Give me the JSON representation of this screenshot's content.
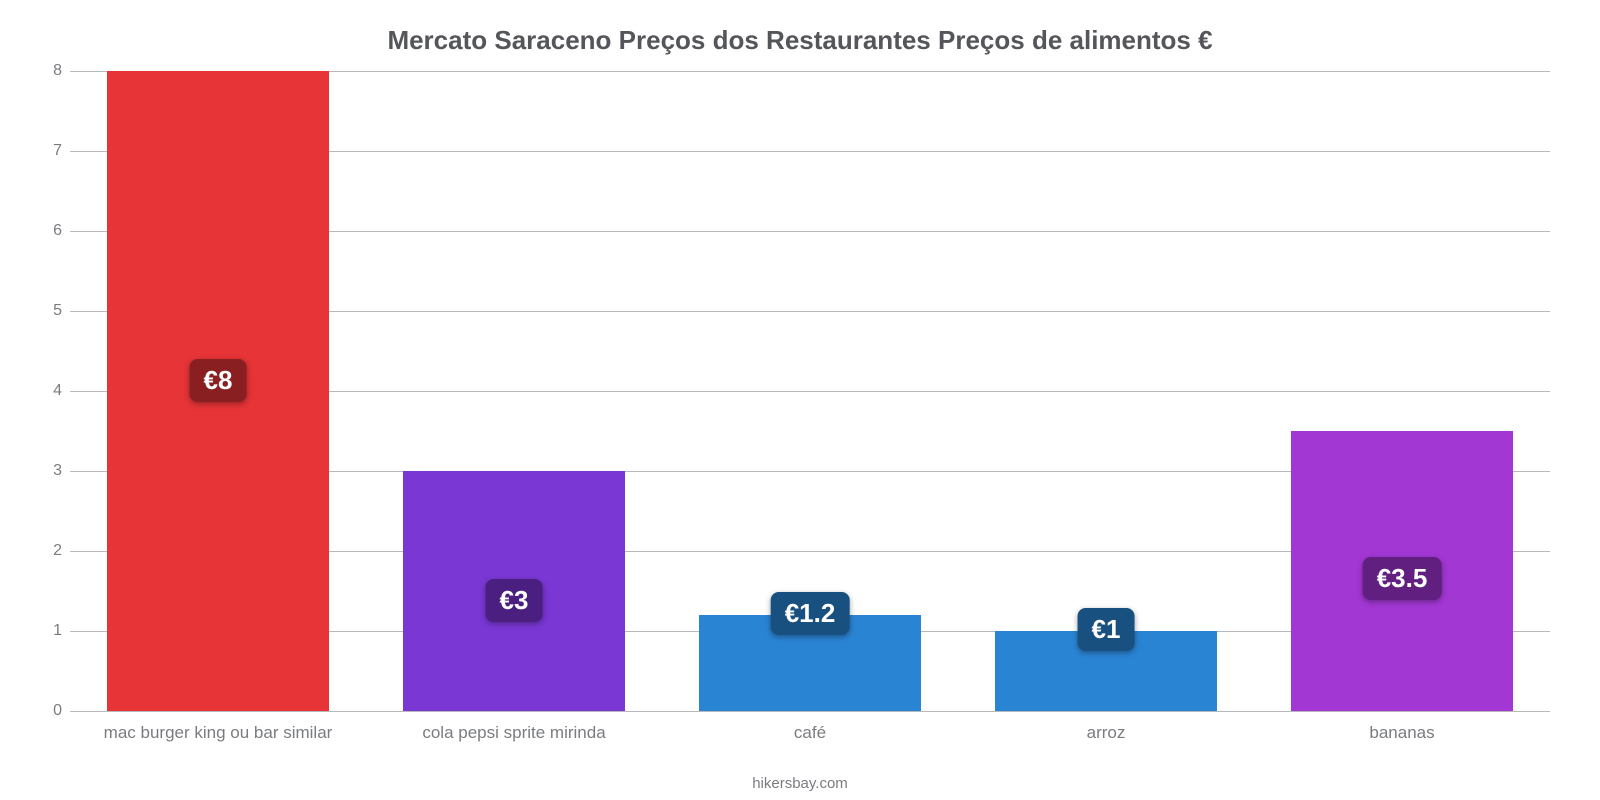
{
  "chart": {
    "type": "bar",
    "title": "Mercato Saraceno Preços dos Restaurantes Preços de alimentos €",
    "title_fontsize": 26,
    "title_color": "#54565a",
    "background_color": "#ffffff",
    "grid_color": "#b6b8bb",
    "axis_label_color": "#7a7c80",
    "ylim": [
      0,
      8
    ],
    "ytick_step": 1,
    "yticks": [
      0,
      1,
      2,
      3,
      4,
      5,
      6,
      7,
      8
    ],
    "bar_width": 0.75,
    "categories": [
      "mac burger king ou bar similar",
      "cola pepsi sprite mirinda",
      "café",
      "arroz",
      "bananas"
    ],
    "values": [
      8,
      3,
      1.2,
      1,
      3.5
    ],
    "value_labels": [
      "€8",
      "€3",
      "€1.2",
      "€1",
      "€3.5"
    ],
    "bar_colors": [
      "#e63437",
      "#7a37d4",
      "#2a84d4",
      "#2a84d4",
      "#a237d4"
    ],
    "badge_colors": [
      "#8a1f21",
      "#4a1f80",
      "#18507f",
      "#18507f",
      "#611f80"
    ],
    "badge_fontsize": 26,
    "x_label_fontsize": 17,
    "y_label_fontsize": 16,
    "attribution": "hikersbay.com"
  }
}
